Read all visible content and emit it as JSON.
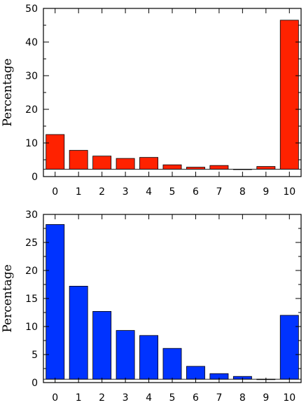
{
  "chart_data": [
    {
      "type": "bar",
      "categories": [
        "0",
        "1",
        "2",
        "3",
        "4",
        "5",
        "6",
        "7",
        "8",
        "9",
        "10"
      ],
      "values": [
        12.5,
        7.8,
        6.1,
        5.4,
        5.7,
        3.5,
        2.8,
        3.3,
        2.2,
        3.0,
        46.5
      ],
      "bar_base": 2.2,
      "bar_color": "#ff2200",
      "title": "",
      "xlabel": "",
      "ylabel": "Percentage",
      "ylim": [
        0,
        50
      ],
      "yticks": [
        0,
        10,
        20,
        30,
        40,
        50
      ],
      "xlim": [
        -0.5,
        10.5
      ],
      "grid": false,
      "legend": "none"
    },
    {
      "type": "bar",
      "categories": [
        "0",
        "1",
        "2",
        "3",
        "4",
        "5",
        "6",
        "7",
        "8",
        "9",
        "10"
      ],
      "values": [
        28.2,
        17.2,
        12.7,
        9.3,
        8.4,
        6.1,
        2.9,
        1.6,
        1.1,
        0.6,
        12.0
      ],
      "bar_base": 0.6,
      "bar_color": "#0033ff",
      "title": "",
      "xlabel": "",
      "ylabel": "Percentage",
      "ylim": [
        0,
        30
      ],
      "yticks": [
        0,
        5,
        10,
        15,
        20,
        25,
        30
      ],
      "xlim": [
        -0.5,
        10.5
      ],
      "grid": false,
      "legend": "none"
    }
  ]
}
